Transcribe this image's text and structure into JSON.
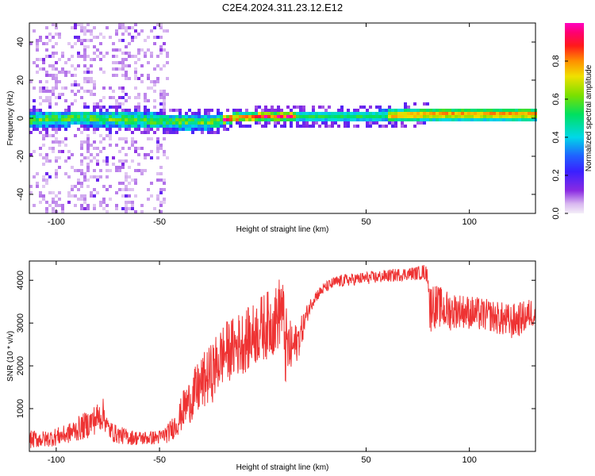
{
  "title": "C2E4.2024.311.23.12.E12",
  "chart_data": [
    {
      "type": "heatmap",
      "title": "C2E4.2024.311.23.12.E12",
      "xlabel": "Height of straight line (km)",
      "ylabel": "Frequency (Hz)",
      "xlim": [
        -113,
        132
      ],
      "ylim": [
        -50,
        50
      ],
      "xticks": [
        -100,
        -50,
        50,
        100
      ],
      "xtick_labels": [
        "-100",
        "-50",
        "50",
        "100"
      ],
      "yticks": [
        -40,
        -20,
        0,
        20,
        40
      ],
      "ytick_labels": [
        "-40",
        "-20",
        "0",
        "20",
        "40"
      ],
      "colorbar": {
        "label": "Normalized spectral amplitude",
        "range": [
          0,
          1
        ],
        "ticks": [
          0.0,
          0.2,
          0.4,
          0.6,
          0.8
        ],
        "tick_labels": [
          "0.0",
          "0.2",
          "0.4",
          "0.6",
          "0.8"
        ],
        "colormap": "rainbow (white→violet→blue→cyan→green→yellow→red→magenta)"
      },
      "ridge": {
        "description": "dominant signal band near 0 Hz",
        "center_freq_hz": [
          [
            -113,
            -1
          ],
          [
            -90,
            0
          ],
          [
            -60,
            -1
          ],
          [
            -40,
            -2
          ],
          [
            -25,
            -2
          ],
          [
            -15,
            0
          ],
          [
            0,
            1
          ],
          [
            25,
            1
          ],
          [
            50,
            1
          ],
          [
            80,
            2
          ],
          [
            132,
            2
          ]
        ]
      },
      "noise_region_x": [
        -113,
        -45
      ],
      "grid": false
    },
    {
      "type": "line",
      "xlabel": "Height of straight line (km)",
      "ylabel": "SNR (10 * v/v)",
      "xlim": [
        -113,
        132
      ],
      "ylim": [
        0,
        4450
      ],
      "xticks": [
        -100,
        -50,
        50,
        100
      ],
      "xtick_labels": [
        "-100",
        "-50",
        "50",
        "100"
      ],
      "yticks": [
        1000,
        2000,
        3000,
        4000
      ],
      "ytick_labels": [
        "1000",
        "2000",
        "3000",
        "4000"
      ],
      "series": [
        {
          "color": "#ee3333",
          "x": [
            -113,
            -110,
            -105,
            -100,
            -95,
            -90,
            -85,
            -80,
            -77,
            -75,
            -72,
            -70,
            -65,
            -60,
            -55,
            -50,
            -46,
            -44,
            -42,
            -40,
            -38,
            -36,
            -34,
            -32,
            -30,
            -28,
            -26,
            -24,
            -22,
            -20,
            -18,
            -16,
            -14,
            -12,
            -10,
            -8,
            -6,
            -4,
            -2,
            0,
            2,
            4,
            6,
            8,
            9,
            10,
            11,
            12,
            14,
            16,
            18,
            20,
            22,
            25,
            30,
            35,
            40,
            45,
            50,
            55,
            60,
            65,
            70,
            75,
            78,
            80,
            81,
            82,
            84,
            86,
            88,
            90,
            95,
            100,
            105,
            110,
            115,
            120,
            125,
            128,
            130,
            132
          ],
          "y": [
            230,
            260,
            250,
            310,
            380,
            560,
            680,
            820,
            900,
            520,
            420,
            380,
            320,
            300,
            310,
            330,
            420,
            520,
            620,
            780,
            980,
            1120,
            1280,
            1450,
            1580,
            1700,
            1780,
            1900,
            2100,
            2280,
            2380,
            2420,
            2480,
            2550,
            2600,
            2650,
            2700,
            2800,
            2850,
            2900,
            2950,
            3000,
            3050,
            3300,
            3600,
            3100,
            2600,
            2500,
            2400,
            2450,
            2700,
            3000,
            3300,
            3600,
            3850,
            3950,
            4000,
            4020,
            4050,
            4070,
            4100,
            4120,
            4150,
            4150,
            4170,
            4100,
            3400,
            3700,
            3550,
            3500,
            3480,
            3450,
            3350,
            3320,
            3280,
            3230,
            3200,
            3180,
            3220,
            3260,
            3250,
            3250
          ],
          "lower_band_y": [
            60,
            80,
            90,
            130,
            170,
            230,
            300,
            420,
            520,
            300,
            200,
            180,
            150,
            140,
            150,
            160,
            200,
            260,
            330,
            420,
            560,
            640,
            700,
            760,
            900,
            1000,
            1100,
            1150,
            1300,
            1500,
            1600,
            1650,
            1700,
            1750,
            1800,
            1850,
            1900,
            2000,
            2050,
            2100,
            2150,
            2200,
            2250,
            2400,
            2600,
            2200,
            1400,
            1600,
            1800,
            2000,
            2300,
            2700,
            3100,
            3450,
            3700,
            3800,
            3850,
            3880,
            3900,
            3920,
            3950,
            3970,
            4000,
            4000,
            4020,
            3900,
            2600,
            3000,
            2800,
            2900,
            2800,
            2800,
            2900,
            2850,
            2800,
            2800,
            2700,
            2600,
            2700,
            2800,
            2900,
            2900
          ],
          "upper_band_y": [
            480,
            500,
            480,
            560,
            620,
            800,
            950,
            1150,
            1250,
            780,
            650,
            600,
            520,
            480,
            480,
            500,
            640,
            800,
            950,
            1200,
            1500,
            1650,
            1850,
            2050,
            2200,
            2350,
            2450,
            2600,
            2800,
            2950,
            3050,
            3100,
            3150,
            3250,
            3300,
            3350,
            3400,
            3500,
            3600,
            3700,
            3750,
            3800,
            3850,
            4100,
            4250,
            3900,
            3500,
            3200,
            3000,
            3000,
            3100,
            3300,
            3500,
            3750,
            3950,
            4100,
            4150,
            4170,
            4200,
            4220,
            4250,
            4280,
            4300,
            4330,
            4380,
            4300,
            3900,
            4000,
            3900,
            3850,
            3800,
            3750,
            3700,
            3650,
            3600,
            3550,
            3500,
            3450,
            3500,
            3550,
            3600,
            3500
          ]
        }
      ],
      "grid": false
    }
  ]
}
